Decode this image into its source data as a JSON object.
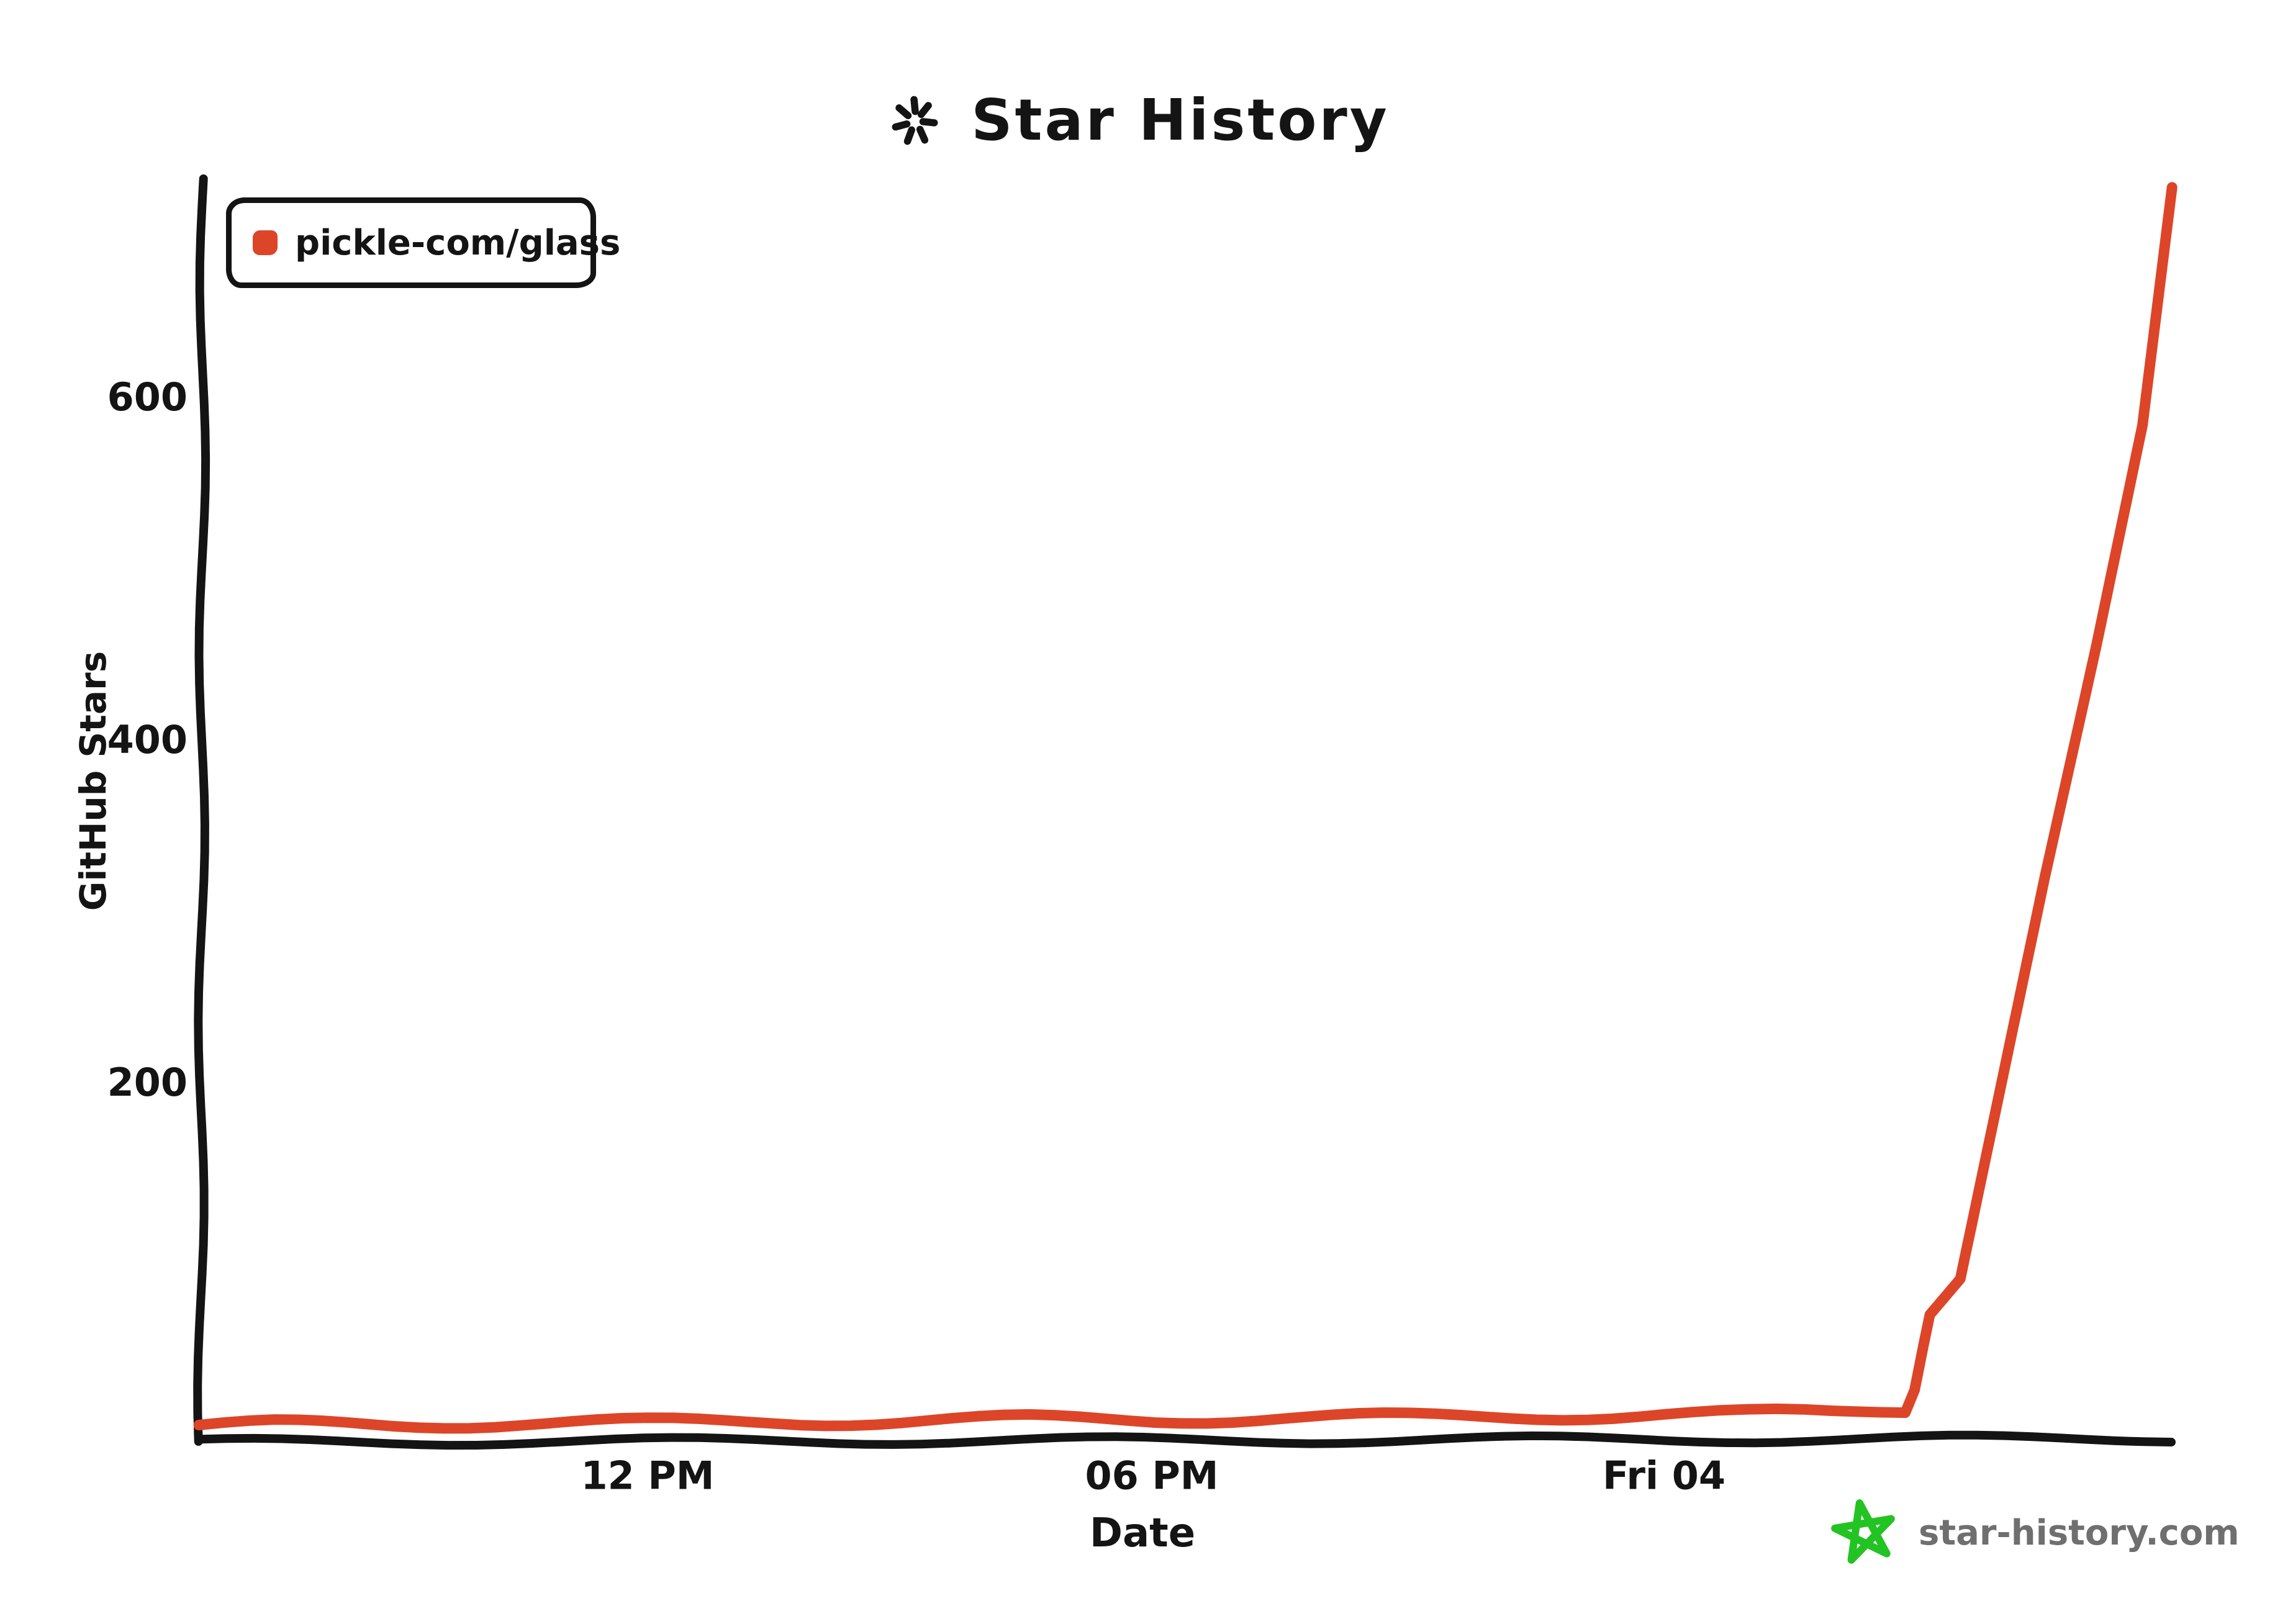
{
  "page": {
    "background": "#ffffff",
    "ink_color": "#141414"
  },
  "title": {
    "text": "Star History",
    "icon": "sparkle-icon"
  },
  "legend": {
    "position": "top-left",
    "items": [
      {
        "label": "pickle-com/glass",
        "color": "#dd4528",
        "marker": "rounded-square"
      }
    ]
  },
  "watermark": {
    "text": "star-history.com",
    "icon": "green-star-icon",
    "text_color": "#6f6f6f",
    "star_color": "#23c323"
  },
  "chart_data": {
    "type": "line",
    "title": "Star History",
    "xlabel": "Date",
    "ylabel": "GitHub Stars",
    "grid": false,
    "style": "hand-drawn (xkcd-like)",
    "x_unit": "hours since Thursday 00:00",
    "x_range": [
      6.7,
      30.1
    ],
    "ylim": [
      0,
      740
    ],
    "x_ticks": [
      {
        "label": "12 PM",
        "hour": 12
      },
      {
        "label": "06 PM",
        "hour": 18
      },
      {
        "label": "Fri 04",
        "hour": 24
      }
    ],
    "y_ticks": [
      {
        "label": "200",
        "value": 200
      },
      {
        "label": "400",
        "value": 400
      },
      {
        "label": "600",
        "value": 600
      }
    ],
    "legend_position": "top-left",
    "series": [
      {
        "name": "pickle-com/glass",
        "color": "#dd4528",
        "points": [
          [
            6.7,
            1
          ],
          [
            7.6,
            2
          ],
          [
            9,
            2
          ],
          [
            10.5,
            3
          ],
          [
            12,
            3
          ],
          [
            13.5,
            4
          ],
          [
            15,
            4
          ],
          [
            16.5,
            5
          ],
          [
            18,
            5
          ],
          [
            19.5,
            6
          ],
          [
            21,
            6
          ],
          [
            22.5,
            7
          ],
          [
            24,
            8
          ],
          [
            25,
            8
          ],
          [
            26,
            9
          ],
          [
            26.85,
            11
          ],
          [
            26.96,
            22
          ],
          [
            27.06,
            47
          ],
          [
            27.14,
            66
          ],
          [
            27.5,
            87
          ],
          [
            28.5,
            322
          ],
          [
            29.1,
            455
          ],
          [
            29.65,
            585
          ],
          [
            30.0,
            724
          ]
        ]
      }
    ]
  }
}
